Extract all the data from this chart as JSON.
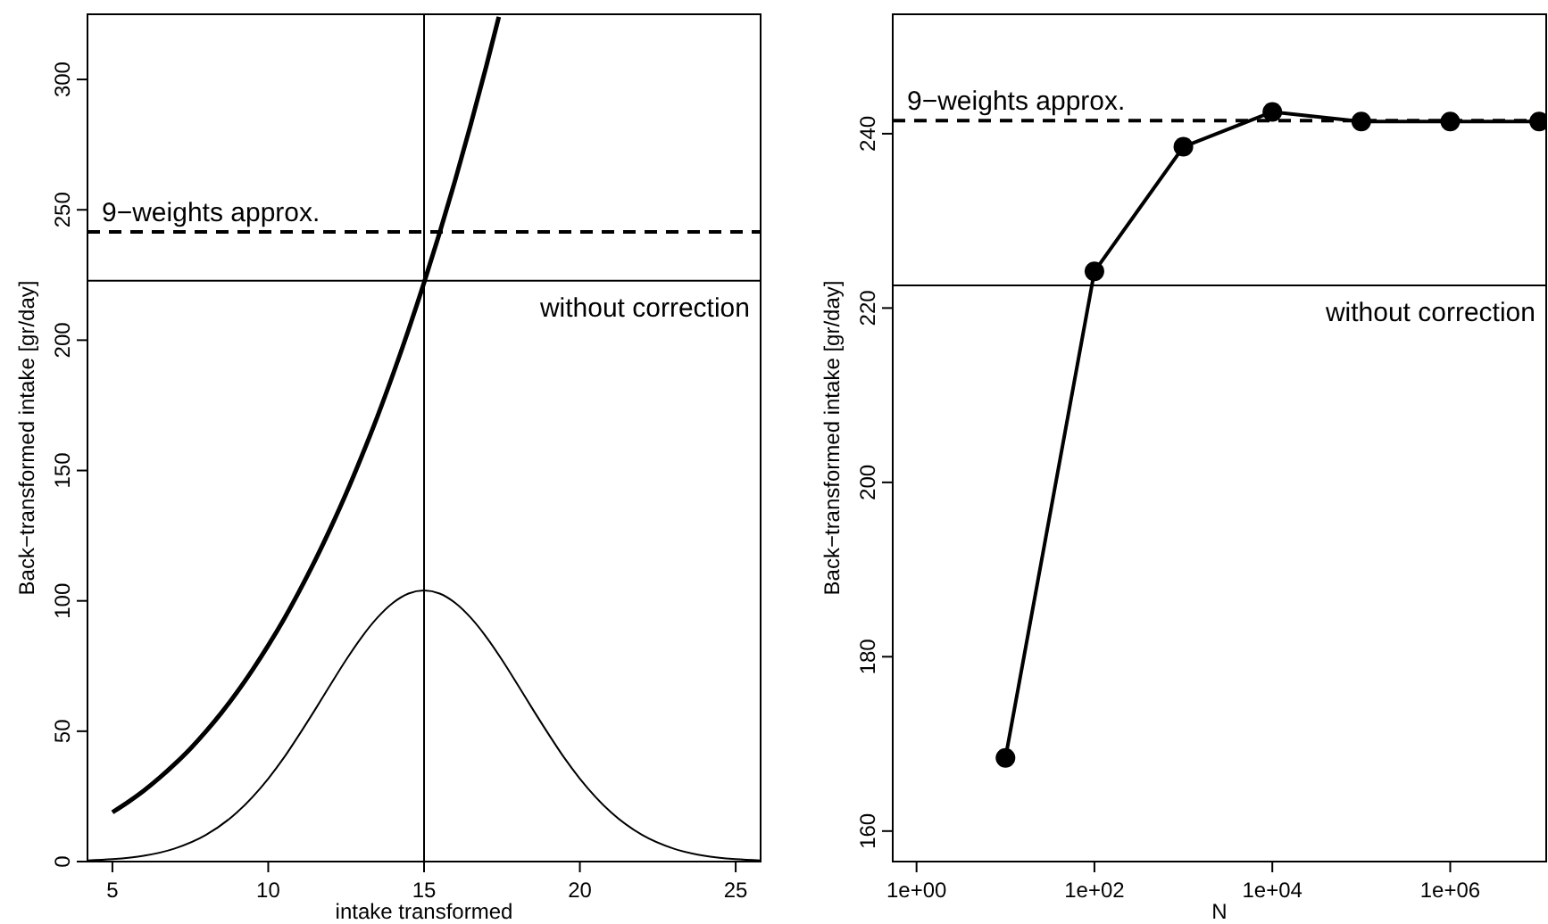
{
  "chart_data": [
    {
      "type": "line",
      "xlabel": "intake transformed",
      "ylabel": "Back−transformed intake [gr/day]",
      "xlim": [
        4.2,
        25.8
      ],
      "ylim": [
        0,
        325
      ],
      "xticks": [
        5,
        10,
        15,
        20,
        25
      ],
      "yticks": [
        0,
        50,
        100,
        150,
        200,
        250,
        300
      ],
      "marker": "none",
      "series": [
        {
          "color": "#000000",
          "x": [
            5,
            5.5,
            6,
            6.5,
            7,
            7.5,
            8,
            8.5,
            9,
            9.5,
            10,
            10.5,
            11,
            11.5,
            12,
            12.5,
            13,
            13.5,
            14,
            14.5,
            15,
            15.5,
            16,
            16.5,
            17,
            17.4
          ],
          "values": [
            18.9,
            22.8,
            27.1,
            32,
            37.4,
            43.3,
            49.9,
            57.1,
            65,
            73.6,
            82.9,
            92.9,
            103.8,
            115.4,
            127.9,
            141.2,
            155.5,
            170.6,
            186.8,
            203.9,
            222,
            241.2,
            261.4,
            282.8,
            305.2,
            324
          ]
        },
        {
          "color": "#000000",
          "x": [
            4.2,
            5,
            6,
            7,
            8,
            9,
            10,
            10.5,
            11,
            11.5,
            12,
            12.5,
            13,
            13.5,
            14,
            14.5,
            15,
            15.5,
            16,
            16.5,
            17,
            17.5,
            18,
            18.5,
            19,
            19.5,
            20,
            21,
            22,
            23,
            24,
            25,
            25.8
          ],
          "values": [
            0.4,
            0.9,
            2.2,
            5,
            10.2,
            18.9,
            31.8,
            39.8,
            48.8,
            58.2,
            67.9,
            77.4,
            86.1,
            93.5,
            99.2,
            102.8,
            104,
            102.8,
            99.2,
            93.5,
            86.1,
            77.4,
            67.9,
            58.2,
            48.8,
            39.8,
            31.8,
            18.9,
            10.2,
            5,
            2.2,
            0.9,
            0.4
          ]
        }
      ],
      "ref_lines": [
        {
          "axis": "y",
          "value": 241.5,
          "label": "9−weights approx.",
          "line_style": "dashed"
        },
        {
          "axis": "y",
          "value": 222.8,
          "label": "without correction",
          "line_style": "solid"
        },
        {
          "axis": "x",
          "value": 15,
          "line_style": "solid"
        }
      ]
    },
    {
      "type": "line",
      "xlabel": "N",
      "ylabel": "Back−transformed intake [gr/day]",
      "log": "x",
      "xlim": [
        0.54,
        12000000
      ],
      "ylim": [
        156.5,
        253.7
      ],
      "xticks": [
        {
          "value": 1,
          "label": "1e+00"
        },
        {
          "value": 100,
          "label": "1e+02"
        },
        {
          "value": 10000,
          "label": "1e+04"
        },
        {
          "value": 1000000,
          "label": "1e+06"
        }
      ],
      "yticks": [
        160,
        180,
        200,
        220,
        240
      ],
      "marker": "circle",
      "series": [
        {
          "color": "#000000",
          "x": [
            10,
            100,
            1000,
            10000,
            100000,
            1000000,
            10000000
          ],
          "values": [
            168.4,
            224.2,
            238.5,
            242.5,
            241.4,
            241.4,
            241.4
          ]
        }
      ],
      "ref_lines": [
        {
          "axis": "y",
          "value": 241.5,
          "label": "9−weights approx.",
          "line_style": "dashed"
        },
        {
          "axis": "y",
          "value": 222.6,
          "label": "without correction",
          "line_style": "solid"
        }
      ]
    }
  ]
}
